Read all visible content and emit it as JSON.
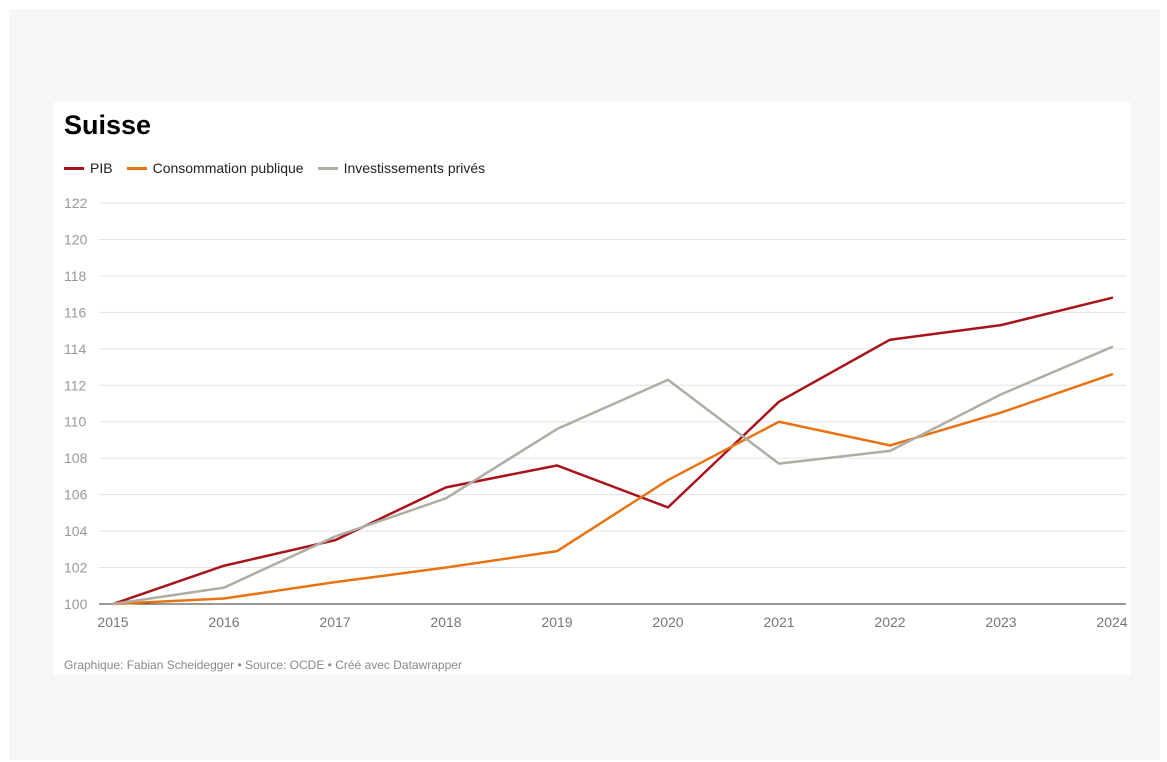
{
  "chart_data": {
    "type": "line",
    "title": "Suisse",
    "xlabel": "",
    "ylabel": "",
    "x": [
      2015,
      2016,
      2017,
      2018,
      2019,
      2020,
      2021,
      2022,
      2023,
      2024
    ],
    "ylim": [
      100,
      122
    ],
    "yticks": [
      100,
      102,
      104,
      106,
      108,
      110,
      112,
      114,
      116,
      118,
      120,
      122
    ],
    "grid": true,
    "legend_position": "top-left",
    "series": [
      {
        "name": "PIB",
        "color": "#a8141c",
        "values": [
          100,
          102.1,
          103.5,
          106.4,
          107.6,
          105.3,
          111.1,
          114.5,
          115.3,
          116.8
        ]
      },
      {
        "name": "Consommation publique",
        "color": "#e87312",
        "values": [
          100,
          100.3,
          101.2,
          102.0,
          102.9,
          106.8,
          110.0,
          108.7,
          110.5,
          112.6
        ]
      },
      {
        "name": "Investissements privés",
        "color": "#b0ada5",
        "values": [
          100,
          100.9,
          103.7,
          105.8,
          109.6,
          112.3,
          107.7,
          108.4,
          111.5,
          114.1
        ]
      }
    ]
  },
  "footer": "Graphique: Fabian Scheidegger • Source: OCDE • Créé avec Datawrapper"
}
